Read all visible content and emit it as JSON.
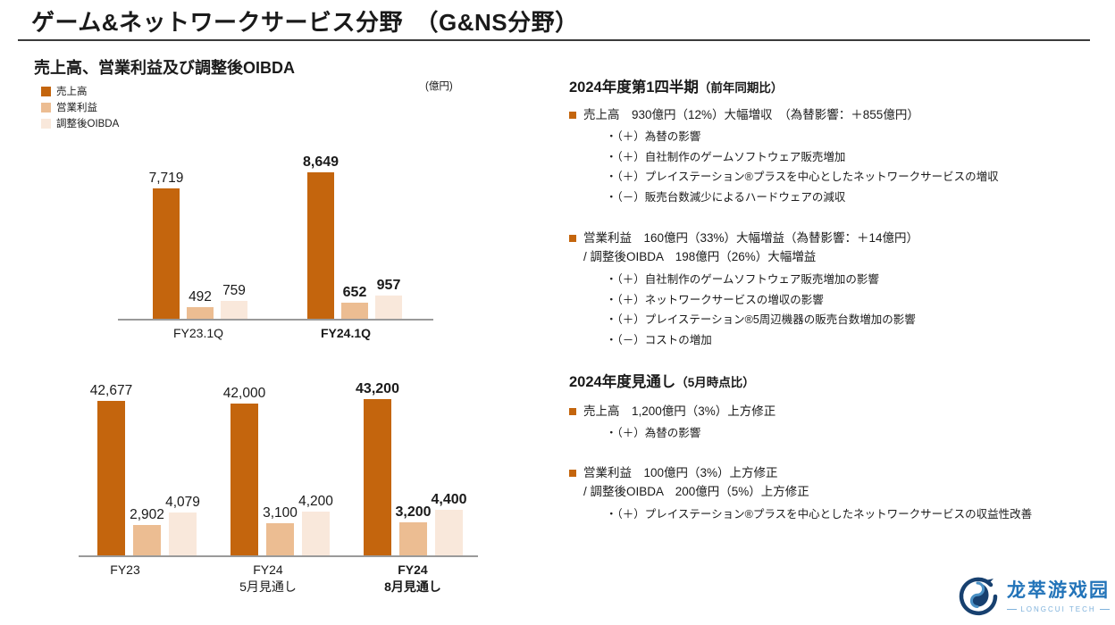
{
  "header": {
    "title": "ゲーム&ネットワークサービス分野　（G&NS分野）"
  },
  "chart_section": {
    "title": "売上高、営業利益及び調整後OIBDA",
    "unit": "(億円)",
    "legend": [
      {
        "label": "売上高",
        "color": "#C4650D"
      },
      {
        "label": "営業利益",
        "color": "#ECBD92"
      },
      {
        "label": "調整後OIBDA",
        "color": "#F9E8DB"
      }
    ]
  },
  "chart_data": [
    {
      "type": "bar",
      "title": "売上高、営業利益及び調整後OIBDA（第1四半期）",
      "unit": "億円",
      "categories": [
        "FY23.1Q",
        "FY24.1Q"
      ],
      "series": [
        {
          "name": "売上高",
          "values": [
            7719,
            8649
          ]
        },
        {
          "name": "営業利益",
          "values": [
            492,
            652
          ]
        },
        {
          "name": "調整後OIBDA",
          "values": [
            759,
            957
          ]
        }
      ],
      "emphasized_category": "FY24.1Q",
      "value_labels_shown": true,
      "grid": false,
      "legend_position": "top-left",
      "ylim": [
        0,
        9000
      ]
    },
    {
      "type": "bar",
      "title": "売上高、営業利益及び調整後OIBDA（年度見通し）",
      "unit": "億円",
      "categories": [
        "FY23",
        "FY24\n5月見通し",
        "FY24\n8月見通し"
      ],
      "series": [
        {
          "name": "売上高",
          "values": [
            42677,
            42000,
            43200
          ]
        },
        {
          "name": "営業利益",
          "values": [
            2902,
            3100,
            3200
          ]
        },
        {
          "name": "調整後OIBDA",
          "values": [
            4079,
            4200,
            4400
          ]
        }
      ],
      "emphasized_category": "FY24 8月見通し",
      "value_labels_shown": true,
      "grid": false,
      "legend_position": "top-left",
      "ylim": [
        0,
        45000
      ]
    }
  ],
  "right_panel": {
    "section1": {
      "heading": "2024年度第1四半期",
      "heading_note": "（前年同期比）",
      "block1": {
        "headline": "売上高　930億円（12%）大幅増収　（為替影響：＋855億円）",
        "items": [
          "・（＋）為替の影響",
          "・（＋）自社制作のゲームソフトウェア販売増加",
          "・（＋）プレイステーション®プラスを中心としたネットワークサービスの増収",
          "・（－）販売台数減少によるハードウェアの減収"
        ]
      },
      "block2": {
        "headline": "営業利益　160億円（33%）大幅増益（為替影響：＋14億円）",
        "headline2": "/ 調整後OIBDA　198億円（26%）大幅増益",
        "items": [
          "・（＋）自社制作のゲームソフトウェア販売増加の影響",
          "・（＋）ネットワークサービスの増収の影響",
          "・（＋）プレイステーション®5周辺機器の販売台数増加の影響",
          "・（－）コストの増加"
        ]
      }
    },
    "section2": {
      "heading": "2024年度見通し",
      "heading_note": "（5月時点比）",
      "block1": {
        "headline": "売上高　1,200億円（3%）上方修正",
        "items": [
          "・（＋）為替の影響"
        ]
      },
      "block2": {
        "headline": "営業利益　100億円（3%）上方修正",
        "headline2": "/ 調整後OIBDA　200億円（5%）上方修正",
        "items": [
          "・（＋）プレイステーション®プラスを中心としたネットワークサービスの収益性改善"
        ]
      }
    }
  },
  "footer_logo": {
    "name": "龙萃游戏园",
    "subtitle": "LONGCUI TECH"
  },
  "colors": {
    "accent_dark": "#C4650D",
    "accent_mid": "#ECBD92",
    "accent_light": "#F9E8DB",
    "heading_rule": "#3B3B3B",
    "axis_gray": "#9A9A9A",
    "logo_blue": "#2374B9",
    "logo_navy": "#17406F",
    "logo_light_blue": "#7FB2DC"
  }
}
